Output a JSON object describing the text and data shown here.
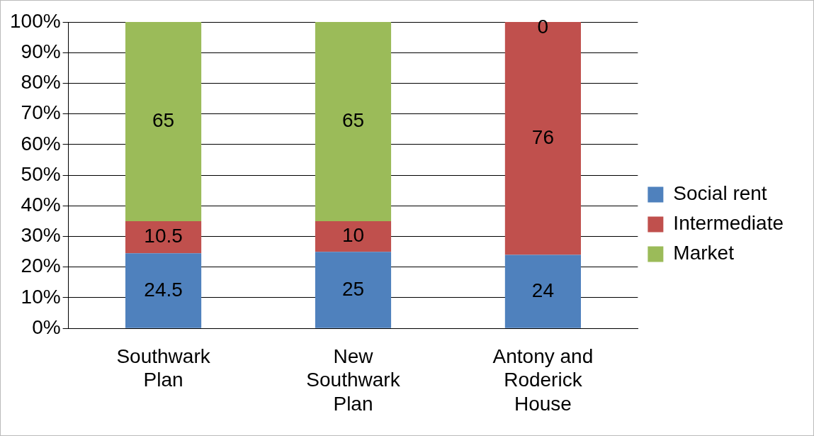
{
  "chart_data": {
    "type": "bar",
    "stacked": true,
    "categories": [
      "Southwark Plan",
      "New Southwark Plan",
      "Antony and Roderick House"
    ],
    "series": [
      {
        "name": "Social rent",
        "color": "#4f81bd",
        "values": [
          24.5,
          25,
          24
        ]
      },
      {
        "name": "Intermediate",
        "color": "#c0504d",
        "values": [
          10.5,
          10,
          76
        ]
      },
      {
        "name": "Market",
        "color": "#9bbb59",
        "values": [
          65,
          65,
          0
        ]
      }
    ],
    "ylim": [
      0,
      100
    ],
    "yticks": [
      {
        "value": 0,
        "label": "0%"
      },
      {
        "value": 10,
        "label": "10%"
      },
      {
        "value": 20,
        "label": "20%"
      },
      {
        "value": 30,
        "label": "30%"
      },
      {
        "value": 40,
        "label": "40%"
      },
      {
        "value": 50,
        "label": "50%"
      },
      {
        "value": 60,
        "label": "60%"
      },
      {
        "value": 70,
        "label": "70%"
      },
      {
        "value": 80,
        "label": "80%"
      },
      {
        "value": 90,
        "label": "90%"
      },
      {
        "value": 100,
        "label": "100%"
      }
    ],
    "grid": "y",
    "legend": "right",
    "data_labels": true
  }
}
